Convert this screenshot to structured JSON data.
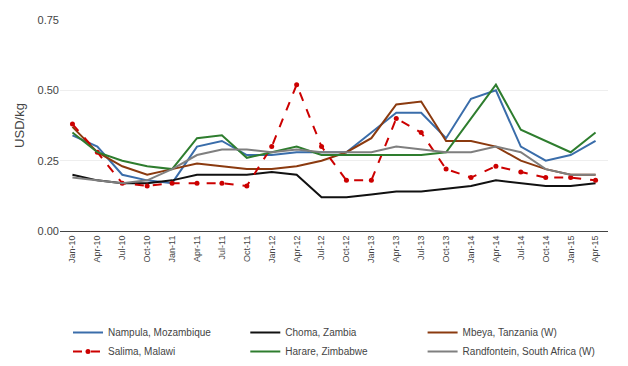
{
  "chart_data": {
    "type": "line",
    "ylabel": "USD/kg",
    "categories": [
      "Jan-10",
      "Apr-10",
      "Jul-10",
      "Oct-10",
      "Jan-11",
      "Apr-11",
      "Jul-11",
      "Oct-11",
      "Jan-12",
      "Apr-12",
      "Jul-12",
      "Oct-12",
      "Jan-13",
      "Apr-13",
      "Jul-13",
      "Oct-13",
      "Jan-14",
      "Apr-14",
      "Jul-14",
      "Oct-14",
      "Jan-15",
      "Apr-15"
    ],
    "series": [
      {
        "name": "Nampula, Mozambique",
        "color": "#3A6DAA",
        "line_style": "solid",
        "values": [
          0.34,
          0.3,
          0.2,
          0.18,
          0.17,
          0.3,
          0.32,
          0.27,
          0.27,
          0.28,
          0.28,
          0.28,
          0.35,
          0.42,
          0.42,
          0.33,
          0.47,
          0.5,
          0.3,
          0.25,
          0.27,
          0.32
        ]
      },
      {
        "name": "Choma, Zambia",
        "color": "#111111",
        "line_style": "solid",
        "values": [
          0.2,
          0.18,
          0.17,
          0.17,
          0.18,
          0.2,
          0.2,
          0.2,
          0.21,
          0.2,
          0.12,
          0.12,
          0.13,
          0.14,
          0.14,
          0.15,
          0.16,
          0.18,
          0.17,
          0.16,
          0.16,
          0.17
        ]
      },
      {
        "name": "Mbeya, Tanzania (W)",
        "color": "#8B3A0F",
        "line_style": "solid",
        "values": [
          0.37,
          0.28,
          0.23,
          0.2,
          0.22,
          0.24,
          0.23,
          0.22,
          0.22,
          0.23,
          0.25,
          0.28,
          0.33,
          0.45,
          0.46,
          0.32,
          0.32,
          0.3,
          0.25,
          0.22,
          0.2,
          0.2
        ]
      },
      {
        "name": "Salima, Malawi",
        "color": "#cc0000",
        "line_style": "dashed",
        "marker": "dot",
        "values": [
          0.38,
          0.28,
          0.17,
          0.16,
          0.17,
          0.17,
          0.17,
          0.16,
          0.3,
          0.52,
          0.3,
          0.18,
          0.18,
          0.4,
          0.35,
          0.22,
          0.19,
          0.23,
          0.21,
          0.19,
          0.19,
          0.18
        ]
      },
      {
        "name": "Harare, Zimbabwe",
        "color": "#2E7D2E",
        "line_style": "solid",
        "values": [
          0.35,
          0.28,
          0.25,
          0.23,
          0.22,
          0.33,
          0.34,
          0.26,
          0.28,
          0.3,
          0.27,
          0.27,
          0.27,
          0.27,
          0.27,
          0.28,
          0.4,
          0.52,
          0.36,
          0.32,
          0.28,
          0.35
        ]
      },
      {
        "name": "Randfontein, South Africa (W)",
        "color": "#7F7F7F",
        "line_style": "solid",
        "values": [
          0.19,
          0.18,
          0.17,
          0.18,
          0.22,
          0.27,
          0.29,
          0.29,
          0.28,
          0.29,
          0.28,
          0.28,
          0.28,
          0.3,
          0.29,
          0.28,
          0.28,
          0.3,
          0.28,
          0.22,
          0.2,
          0.2
        ]
      }
    ],
    "ylim": [
      0.0,
      0.75
    ],
    "yticks": [
      {
        "value": 0.0,
        "label": "0.00"
      },
      {
        "value": 0.25,
        "label": "0.25"
      },
      {
        "value": 0.5,
        "label": "0.50"
      },
      {
        "value": 0.75,
        "label": "0.75"
      }
    ],
    "grid": true,
    "legend": "bottom"
  }
}
